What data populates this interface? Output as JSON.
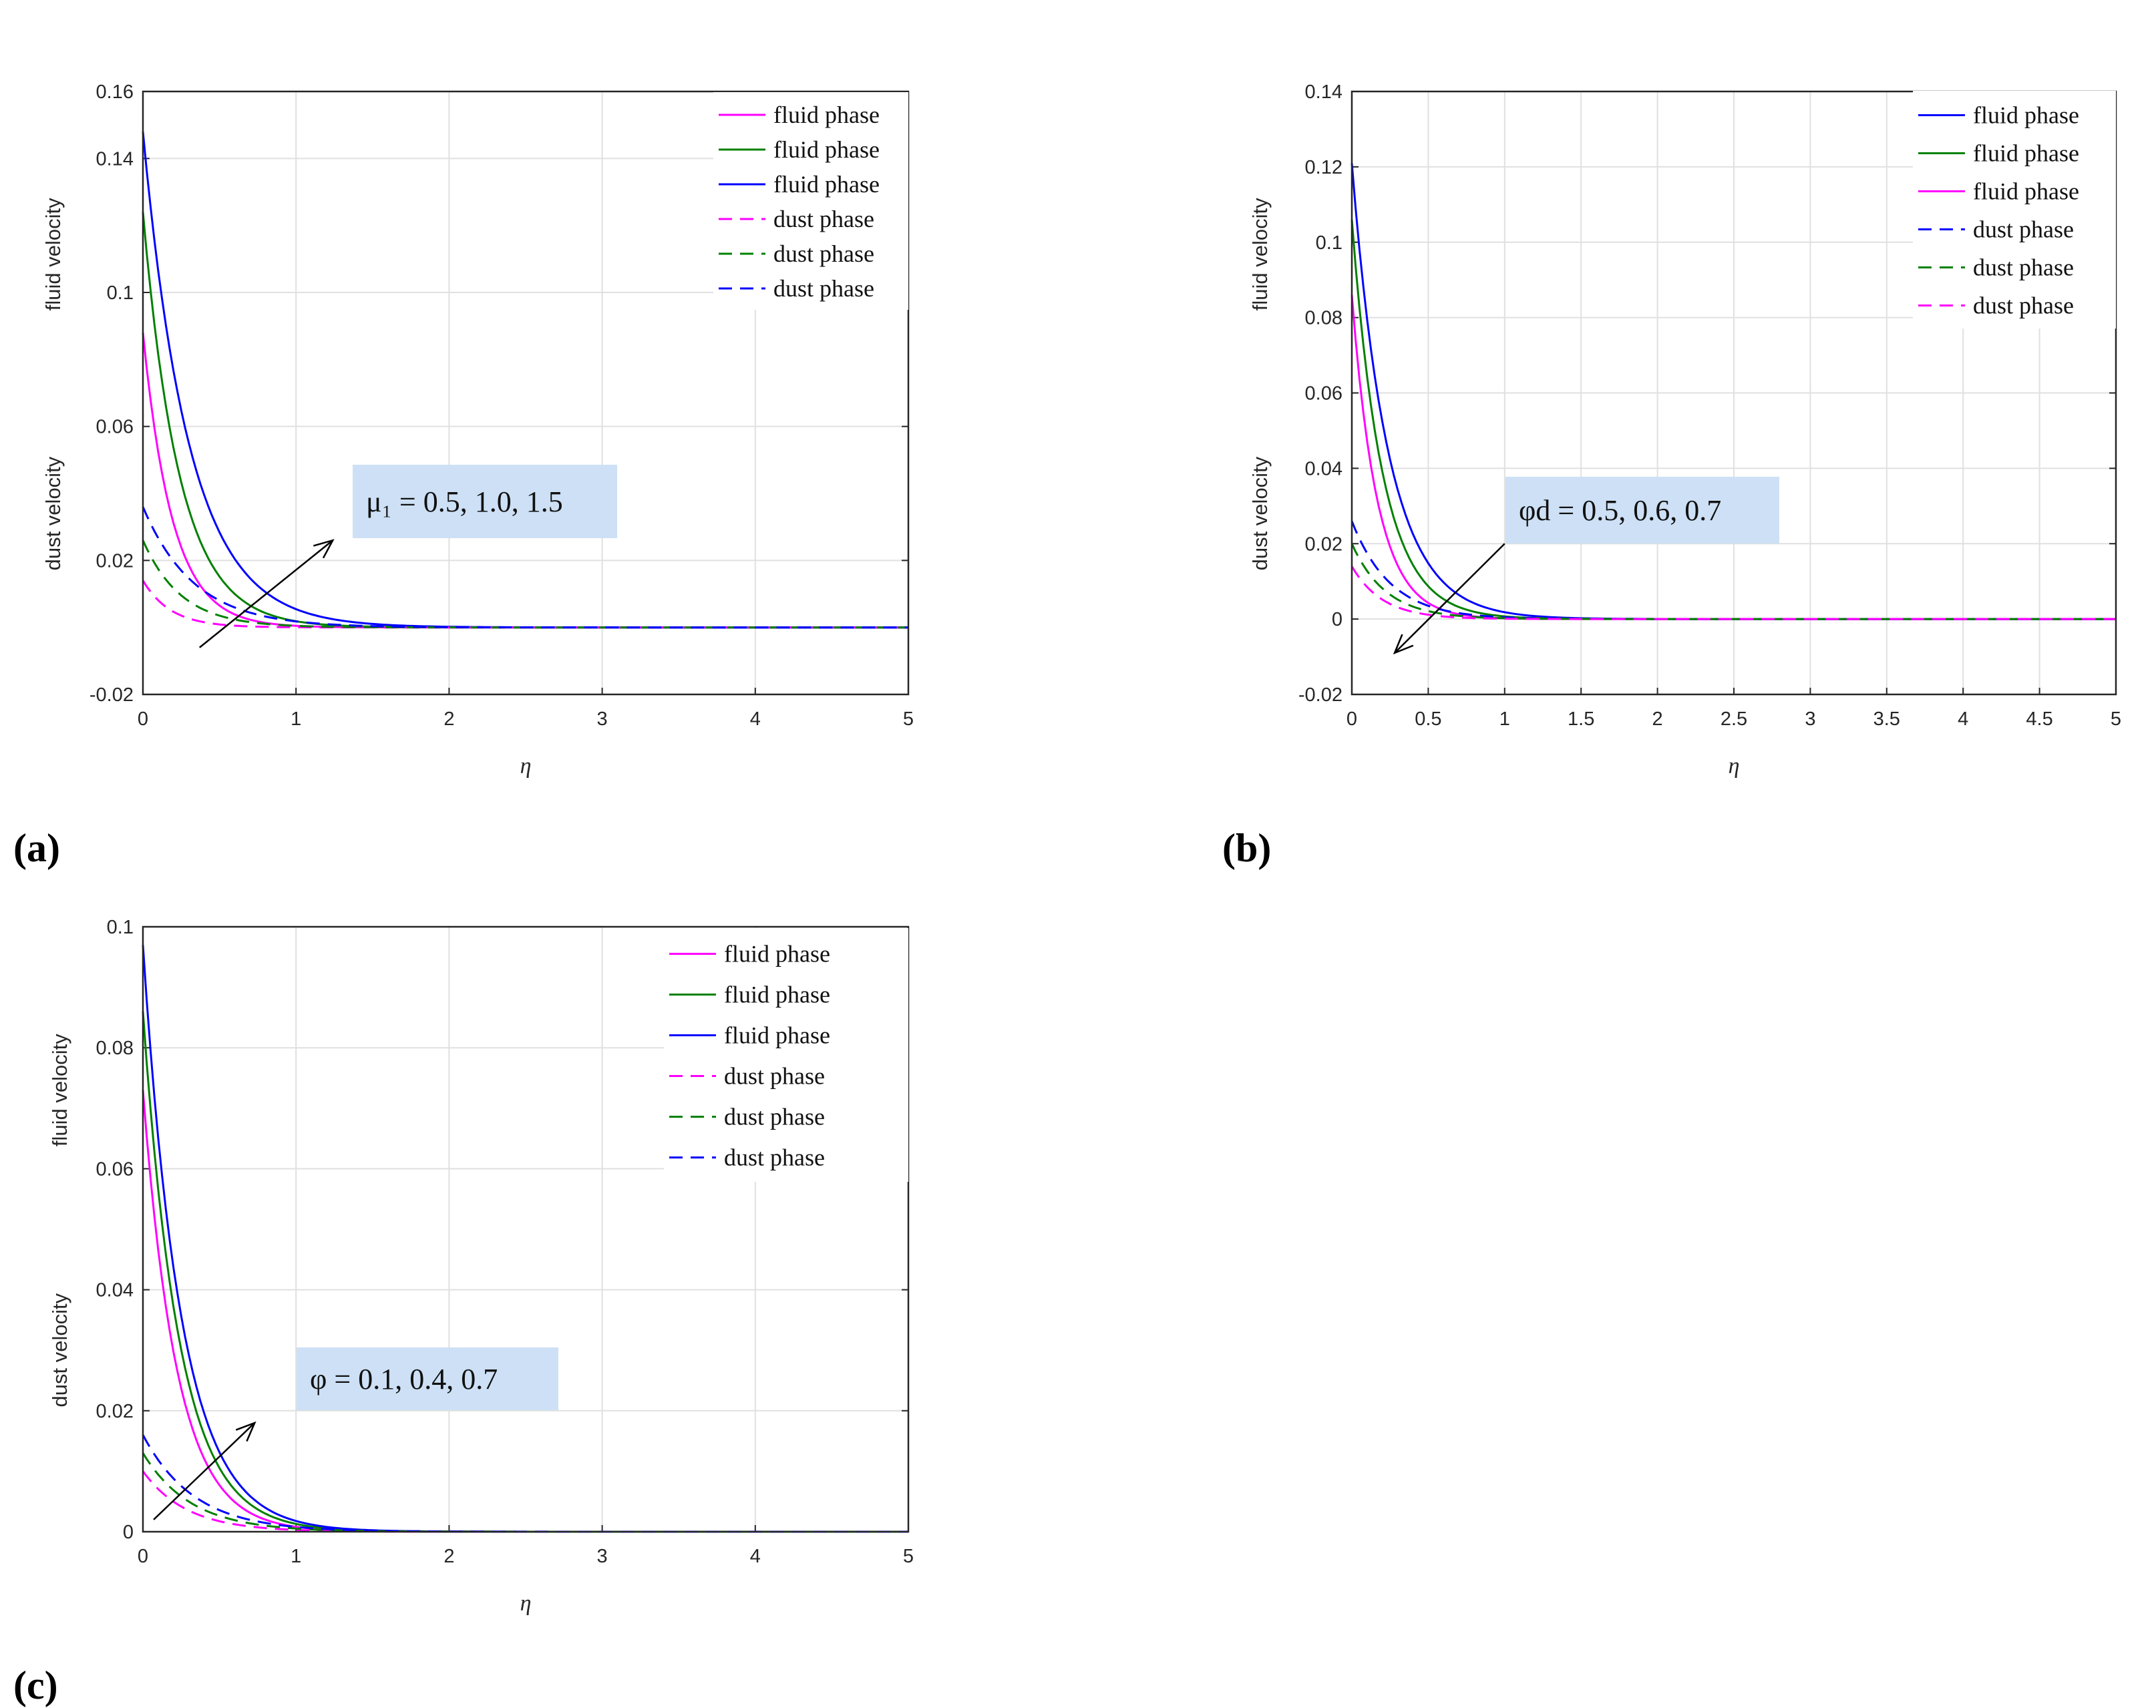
{
  "chart_data": [
    {
      "type": "line",
      "panel_label": "(a)",
      "xlabel": "η",
      "ylabels": [
        "fluid velocity",
        "dust velocity"
      ],
      "xlim": [
        0,
        5
      ],
      "ylim": [
        -0.02,
        0.16
      ],
      "xticks": [
        "0",
        "1",
        "2",
        "3",
        "4",
        "5"
      ],
      "yticks": [
        "-0.02",
        "0.02",
        "0.06",
        "0.1",
        "0.14",
        "0.16"
      ],
      "ytick_values": [
        -0.02,
        0.02,
        0.06,
        0.1,
        0.14,
        0.16
      ],
      "grid": true,
      "legend_position": "top-right",
      "annotation": {
        "text": "μ₁ = 0.5, 1.0, 1.5",
        "arrow": "up-right",
        "from": [
          0.37,
          -0.006
        ],
        "to": [
          1.24,
          0.026
        ]
      },
      "series": [
        {
          "name": "fluid phase",
          "color": "#ff00ff",
          "dash": false,
          "y0": 0.088,
          "decay": 5.2
        },
        {
          "name": "fluid phase",
          "color": "#008000",
          "dash": false,
          "y0": 0.124,
          "decay": 4.2
        },
        {
          "name": "fluid phase",
          "color": "#0000ff",
          "dash": false,
          "y0": 0.148,
          "decay": 3.3
        },
        {
          "name": "dust phase",
          "color": "#ff00ff",
          "dash": true,
          "y0": 0.014,
          "decay": 5.5
        },
        {
          "name": "dust phase",
          "color": "#008000",
          "dash": true,
          "y0": 0.026,
          "decay": 4.0
        },
        {
          "name": "dust phase",
          "color": "#0000ff",
          "dash": true,
          "y0": 0.036,
          "decay": 3.0
        }
      ]
    },
    {
      "type": "line",
      "panel_label": "(b)",
      "xlabel": "η",
      "ylabels": [
        "fluid velocity",
        "dust velocity"
      ],
      "xlim": [
        0,
        5
      ],
      "ylim": [
        -0.02,
        0.14
      ],
      "xticks": [
        "0",
        "0.5",
        "1",
        "1.5",
        "2",
        "2.5",
        "3",
        "3.5",
        "4",
        "4.5",
        "5"
      ],
      "yticks": [
        "-0.02",
        "0",
        "0.02",
        "0.04",
        "0.06",
        "0.08",
        "0.1",
        "0.12",
        "0.14"
      ],
      "ytick_values": [
        -0.02,
        0,
        0.02,
        0.04,
        0.06,
        0.08,
        0.1,
        0.12,
        0.14
      ],
      "grid": true,
      "legend_position": "top-right",
      "annotation": {
        "text": "φd = 0.5, 0.6, 0.7",
        "arrow": "down-left",
        "from": [
          1.0,
          0.02
        ],
        "to": [
          0.28,
          -0.009
        ]
      },
      "series": [
        {
          "name": "fluid phase",
          "color": "#0000ff",
          "dash": false,
          "y0": 0.121,
          "decay": 4.2
        },
        {
          "name": "fluid phase",
          "color": "#008000",
          "dash": false,
          "y0": 0.106,
          "decay": 5.0
        },
        {
          "name": "fluid phase",
          "color": "#ff00ff",
          "dash": false,
          "y0": 0.086,
          "decay": 6.0
        },
        {
          "name": "dust phase",
          "color": "#0000ff",
          "dash": true,
          "y0": 0.026,
          "decay": 4.0
        },
        {
          "name": "dust phase",
          "color": "#008000",
          "dash": true,
          "y0": 0.02,
          "decay": 4.5
        },
        {
          "name": "dust phase",
          "color": "#ff00ff",
          "dash": true,
          "y0": 0.014,
          "decay": 5.0
        }
      ]
    },
    {
      "type": "line",
      "panel_label": "(c)",
      "xlabel": "η",
      "ylabels": [
        "fluid velocity",
        "dust velocity"
      ],
      "xlim": [
        0,
        5
      ],
      "ylim": [
        0,
        0.1
      ],
      "xticks": [
        "0",
        "1",
        "2",
        "3",
        "4",
        "5"
      ],
      "yticks": [
        "0",
        "0.02",
        "0.04",
        "0.06",
        "0.08",
        "0.1"
      ],
      "ytick_values": [
        0,
        0.02,
        0.04,
        0.06,
        0.08,
        0.1
      ],
      "grid": true,
      "legend_position": "top-right",
      "annotation": {
        "text": "φ = 0.1, 0.4, 0.7",
        "arrow": "up-right",
        "from": [
          0.07,
          0.002
        ],
        "to": [
          0.73,
          0.018
        ]
      },
      "series": [
        {
          "name": "fluid phase",
          "color": "#ff00ff",
          "dash": false,
          "y0": 0.073,
          "decay": 4.5
        },
        {
          "name": "fluid phase",
          "color": "#008000",
          "dash": false,
          "y0": 0.086,
          "decay": 4.2
        },
        {
          "name": "fluid phase",
          "color": "#0000ff",
          "dash": false,
          "y0": 0.097,
          "decay": 4.0
        },
        {
          "name": "dust phase",
          "color": "#ff00ff",
          "dash": true,
          "y0": 0.01,
          "decay": 3.5
        },
        {
          "name": "dust phase",
          "color": "#008000",
          "dash": true,
          "y0": 0.013,
          "decay": 3.2
        },
        {
          "name": "dust phase",
          "color": "#0000ff",
          "dash": true,
          "y0": 0.016,
          "decay": 3.0
        }
      ]
    }
  ]
}
